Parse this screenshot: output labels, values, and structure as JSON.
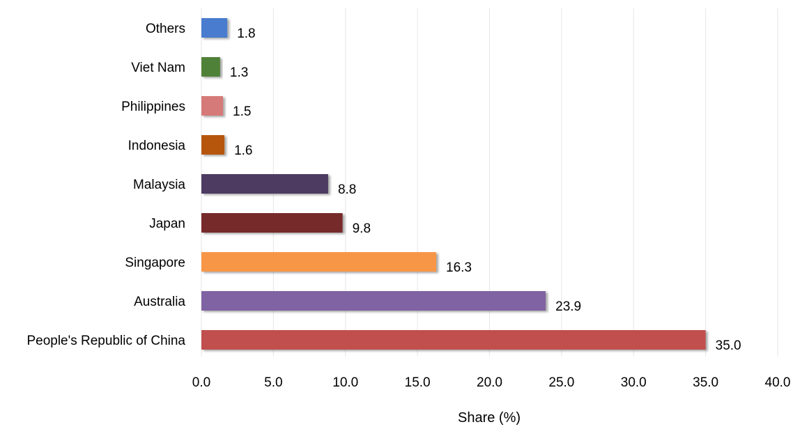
{
  "chart_data": {
    "type": "bar",
    "orientation": "horizontal",
    "categories": [
      "People's Republic of China",
      "Australia",
      "Singapore",
      "Japan",
      "Malaysia",
      "Indonesia",
      "Philippines",
      "Viet Nam",
      "Others"
    ],
    "values": [
      35.0,
      23.9,
      16.3,
      9.8,
      8.8,
      1.6,
      1.5,
      1.3,
      1.8
    ],
    "value_labels": [
      "35.0",
      "23.9",
      "16.3",
      "9.8",
      "8.8",
      "1.6",
      "1.5",
      "1.3",
      "1.8"
    ],
    "colors": [
      "#C0504D",
      "#8064A2",
      "#F79646",
      "#772C2A",
      "#4D3B62",
      "#B65708",
      "#D57A78",
      "#4F8138",
      "#4A7CCF"
    ],
    "xlabel": "Share (%)",
    "ylabel": "",
    "xlim": [
      0,
      40
    ],
    "x_ticks": [
      "0.0",
      "5.0",
      "10.0",
      "15.0",
      "20.0",
      "25.0",
      "30.0",
      "35.0",
      "40.0"
    ],
    "x_tick_values": [
      0,
      5,
      10,
      15,
      20,
      25,
      30,
      35,
      40
    ],
    "grid": "vertical",
    "legend": "none"
  }
}
